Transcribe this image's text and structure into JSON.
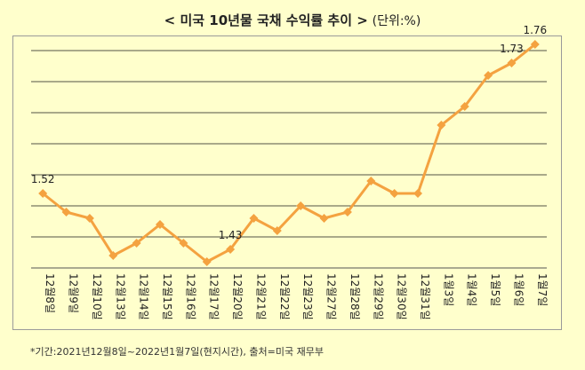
{
  "header": {
    "title": "< 미국 10년물 국채 수익률 추이 >",
    "unit": "(단위:%)"
  },
  "footnote": "*기간:2021년12월8일~2022년1월7일(현지시간), 출처=미국 재무부",
  "colors": {
    "line": "#F4A240",
    "grid": "#1a1a1a",
    "background": "#FFFFCC"
  },
  "chart_data": {
    "type": "line",
    "title": "< 미국 10년물 국채 수익률 추이 >",
    "subtitle": "(단위:%)",
    "xlabel": "",
    "ylabel": "",
    "grid": true,
    "legend": "none",
    "categories": [
      "12월8일",
      "12월9일",
      "12월10일",
      "12월13일",
      "12월14일",
      "12월15일",
      "12월16일",
      "12월17일",
      "12월20일",
      "12월21일",
      "12월22일",
      "12월23일",
      "12월27일",
      "12월28일",
      "12월29일",
      "12월30일",
      "12월31일",
      "1월3일",
      "1월4일",
      "1월5일",
      "1월6일",
      "1월7일"
    ],
    "series": [
      {
        "values": [
          1.52,
          1.49,
          1.48,
          1.42,
          1.44,
          1.47,
          1.44,
          1.41,
          1.43,
          1.48,
          1.46,
          1.5,
          1.48,
          1.49,
          1.54,
          1.52,
          1.52,
          1.63,
          1.66,
          1.71,
          1.73,
          1.76
        ],
        "labels": [
          {
            "index": 0,
            "text": "1.52"
          },
          {
            "index": 8,
            "text": "1.43"
          },
          {
            "index": 20,
            "text": "1.73"
          },
          {
            "index": 21,
            "text": "1.76"
          }
        ]
      }
    ],
    "ylim": [
      1.4,
      1.75
    ]
  }
}
